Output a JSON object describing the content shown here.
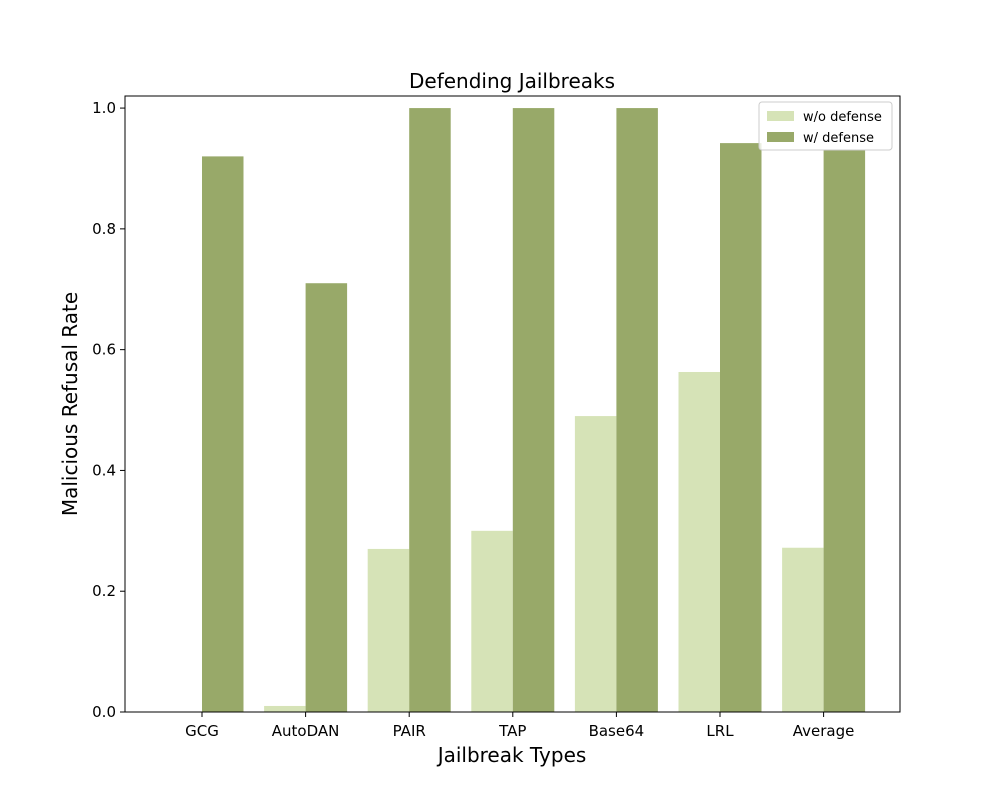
{
  "chart_data": {
    "type": "bar",
    "title": "Defending Jailbreaks",
    "xlabel": "Jailbreak Types",
    "ylabel": "Malicious Refusal Rate",
    "categories": [
      "GCG",
      "AutoDAN",
      "PAIR",
      "TAP",
      "Base64",
      "LRL",
      "Average"
    ],
    "series": [
      {
        "name": "w/o defense",
        "color": "#d6e3b7",
        "values": [
          0.0,
          0.01,
          0.27,
          0.3,
          0.49,
          0.563,
          0.272
        ]
      },
      {
        "name": "w/ defense",
        "color": "#98a969",
        "values": [
          0.92,
          0.71,
          1.0,
          1.0,
          1.0,
          0.942,
          0.93
        ]
      }
    ],
    "ylim": [
      0,
      1.02
    ],
    "yticks": [
      "0.0",
      "0.2",
      "0.4",
      "0.6",
      "0.8",
      "1.0"
    ],
    "grid": false,
    "legend_position": "top-right"
  }
}
